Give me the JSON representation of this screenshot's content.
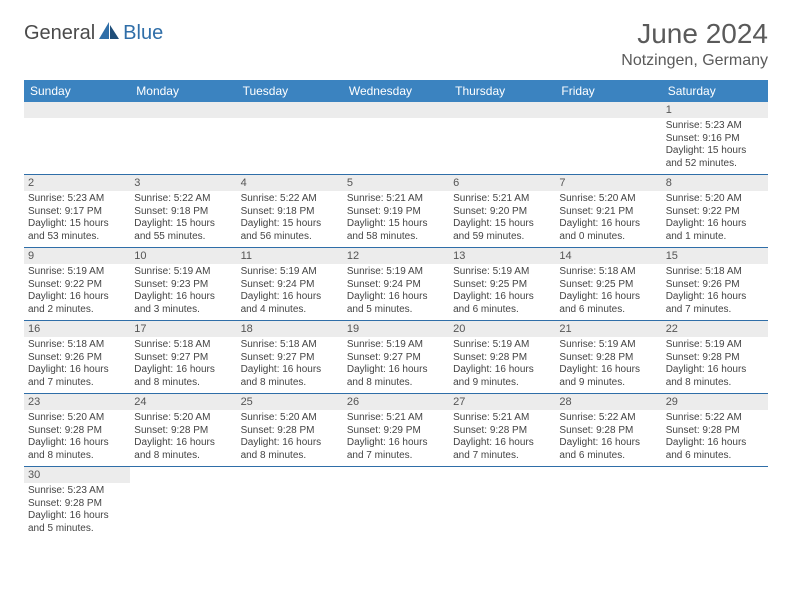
{
  "brand": {
    "part1": "General",
    "part2": "Blue"
  },
  "title": "June 2024",
  "location": "Notzingen, Germany",
  "colors": {
    "header_bg": "#3b83c0",
    "header_text": "#ffffff",
    "row_divider": "#2f6ea8",
    "daynum_bg": "#ececec",
    "text": "#444444",
    "logo_gray": "#4a4a4a",
    "logo_blue": "#2f6ea8"
  },
  "weekdays": [
    "Sunday",
    "Monday",
    "Tuesday",
    "Wednesday",
    "Thursday",
    "Friday",
    "Saturday"
  ],
  "grid": [
    [
      null,
      null,
      null,
      null,
      null,
      null,
      {
        "n": "1",
        "l1": "Sunrise: 5:23 AM",
        "l2": "Sunset: 9:16 PM",
        "l3": "Daylight: 15 hours",
        "l4": "and 52 minutes."
      }
    ],
    [
      {
        "n": "2",
        "l1": "Sunrise: 5:23 AM",
        "l2": "Sunset: 9:17 PM",
        "l3": "Daylight: 15 hours",
        "l4": "and 53 minutes."
      },
      {
        "n": "3",
        "l1": "Sunrise: 5:22 AM",
        "l2": "Sunset: 9:18 PM",
        "l3": "Daylight: 15 hours",
        "l4": "and 55 minutes."
      },
      {
        "n": "4",
        "l1": "Sunrise: 5:22 AM",
        "l2": "Sunset: 9:18 PM",
        "l3": "Daylight: 15 hours",
        "l4": "and 56 minutes."
      },
      {
        "n": "5",
        "l1": "Sunrise: 5:21 AM",
        "l2": "Sunset: 9:19 PM",
        "l3": "Daylight: 15 hours",
        "l4": "and 58 minutes."
      },
      {
        "n": "6",
        "l1": "Sunrise: 5:21 AM",
        "l2": "Sunset: 9:20 PM",
        "l3": "Daylight: 15 hours",
        "l4": "and 59 minutes."
      },
      {
        "n": "7",
        "l1": "Sunrise: 5:20 AM",
        "l2": "Sunset: 9:21 PM",
        "l3": "Daylight: 16 hours",
        "l4": "and 0 minutes."
      },
      {
        "n": "8",
        "l1": "Sunrise: 5:20 AM",
        "l2": "Sunset: 9:22 PM",
        "l3": "Daylight: 16 hours",
        "l4": "and 1 minute."
      }
    ],
    [
      {
        "n": "9",
        "l1": "Sunrise: 5:19 AM",
        "l2": "Sunset: 9:22 PM",
        "l3": "Daylight: 16 hours",
        "l4": "and 2 minutes."
      },
      {
        "n": "10",
        "l1": "Sunrise: 5:19 AM",
        "l2": "Sunset: 9:23 PM",
        "l3": "Daylight: 16 hours",
        "l4": "and 3 minutes."
      },
      {
        "n": "11",
        "l1": "Sunrise: 5:19 AM",
        "l2": "Sunset: 9:24 PM",
        "l3": "Daylight: 16 hours",
        "l4": "and 4 minutes."
      },
      {
        "n": "12",
        "l1": "Sunrise: 5:19 AM",
        "l2": "Sunset: 9:24 PM",
        "l3": "Daylight: 16 hours",
        "l4": "and 5 minutes."
      },
      {
        "n": "13",
        "l1": "Sunrise: 5:19 AM",
        "l2": "Sunset: 9:25 PM",
        "l3": "Daylight: 16 hours",
        "l4": "and 6 minutes."
      },
      {
        "n": "14",
        "l1": "Sunrise: 5:18 AM",
        "l2": "Sunset: 9:25 PM",
        "l3": "Daylight: 16 hours",
        "l4": "and 6 minutes."
      },
      {
        "n": "15",
        "l1": "Sunrise: 5:18 AM",
        "l2": "Sunset: 9:26 PM",
        "l3": "Daylight: 16 hours",
        "l4": "and 7 minutes."
      }
    ],
    [
      {
        "n": "16",
        "l1": "Sunrise: 5:18 AM",
        "l2": "Sunset: 9:26 PM",
        "l3": "Daylight: 16 hours",
        "l4": "and 7 minutes."
      },
      {
        "n": "17",
        "l1": "Sunrise: 5:18 AM",
        "l2": "Sunset: 9:27 PM",
        "l3": "Daylight: 16 hours",
        "l4": "and 8 minutes."
      },
      {
        "n": "18",
        "l1": "Sunrise: 5:18 AM",
        "l2": "Sunset: 9:27 PM",
        "l3": "Daylight: 16 hours",
        "l4": "and 8 minutes."
      },
      {
        "n": "19",
        "l1": "Sunrise: 5:19 AM",
        "l2": "Sunset: 9:27 PM",
        "l3": "Daylight: 16 hours",
        "l4": "and 8 minutes."
      },
      {
        "n": "20",
        "l1": "Sunrise: 5:19 AM",
        "l2": "Sunset: 9:28 PM",
        "l3": "Daylight: 16 hours",
        "l4": "and 9 minutes."
      },
      {
        "n": "21",
        "l1": "Sunrise: 5:19 AM",
        "l2": "Sunset: 9:28 PM",
        "l3": "Daylight: 16 hours",
        "l4": "and 9 minutes."
      },
      {
        "n": "22",
        "l1": "Sunrise: 5:19 AM",
        "l2": "Sunset: 9:28 PM",
        "l3": "Daylight: 16 hours",
        "l4": "and 8 minutes."
      }
    ],
    [
      {
        "n": "23",
        "l1": "Sunrise: 5:20 AM",
        "l2": "Sunset: 9:28 PM",
        "l3": "Daylight: 16 hours",
        "l4": "and 8 minutes."
      },
      {
        "n": "24",
        "l1": "Sunrise: 5:20 AM",
        "l2": "Sunset: 9:28 PM",
        "l3": "Daylight: 16 hours",
        "l4": "and 8 minutes."
      },
      {
        "n": "25",
        "l1": "Sunrise: 5:20 AM",
        "l2": "Sunset: 9:28 PM",
        "l3": "Daylight: 16 hours",
        "l4": "and 8 minutes."
      },
      {
        "n": "26",
        "l1": "Sunrise: 5:21 AM",
        "l2": "Sunset: 9:29 PM",
        "l3": "Daylight: 16 hours",
        "l4": "and 7 minutes."
      },
      {
        "n": "27",
        "l1": "Sunrise: 5:21 AM",
        "l2": "Sunset: 9:28 PM",
        "l3": "Daylight: 16 hours",
        "l4": "and 7 minutes."
      },
      {
        "n": "28",
        "l1": "Sunrise: 5:22 AM",
        "l2": "Sunset: 9:28 PM",
        "l3": "Daylight: 16 hours",
        "l4": "and 6 minutes."
      },
      {
        "n": "29",
        "l1": "Sunrise: 5:22 AM",
        "l2": "Sunset: 9:28 PM",
        "l3": "Daylight: 16 hours",
        "l4": "and 6 minutes."
      }
    ],
    [
      {
        "n": "30",
        "l1": "Sunrise: 5:23 AM",
        "l2": "Sunset: 9:28 PM",
        "l3": "Daylight: 16 hours",
        "l4": "and 5 minutes."
      },
      null,
      null,
      null,
      null,
      null,
      null
    ]
  ]
}
